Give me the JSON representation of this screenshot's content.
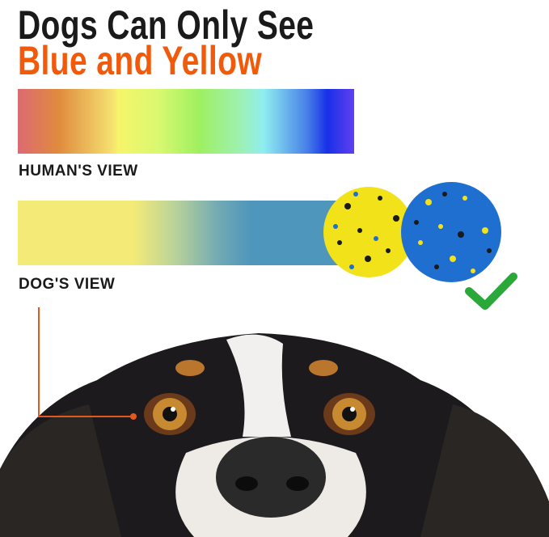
{
  "headline": {
    "line1": "Dogs Can Only See",
    "line2": "Blue and Yellow"
  },
  "human_view": {
    "label": "HUMAN'S VIEW"
  },
  "dog_view": {
    "label": "DOG'S VIEW"
  },
  "colors": {
    "accent": "#f05a0a",
    "check": "#2aa83a",
    "ball_yellow": "#f2e21a",
    "ball_blue": "#1f6fd0"
  },
  "icons": [
    "checkmark-icon"
  ]
}
